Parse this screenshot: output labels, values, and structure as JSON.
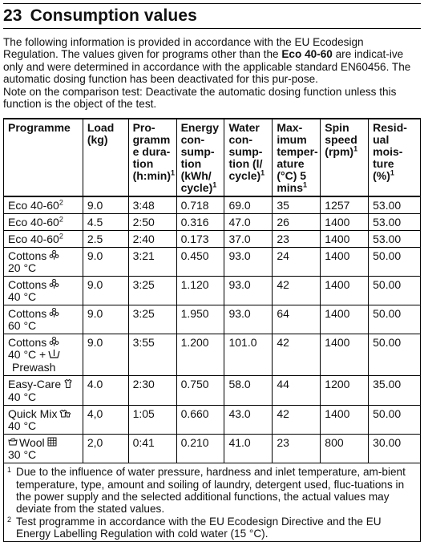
{
  "section": {
    "number": "23",
    "title": "Consumption values"
  },
  "intro": {
    "para1_a": "The following information is provided in accordance with the EU Ecodesign Regulation. The values given for programs other than the ",
    "para1_bold": "Eco 40-60",
    "para1_b": " are indicat-ive only and were determined in accordance with the applicable standard EN60456. The automatic dosing function has been deactivated for this pur-pose.",
    "para2": "Note on the comparison test: Deactivate the automatic dosing function unless this function is the object of the test."
  },
  "headers": {
    "programme": "Programme",
    "load_1": "Load",
    "load_2": "(kg)",
    "duration_1": "Pro-",
    "duration_2": "gramm",
    "duration_3": "e dura-",
    "duration_4": "tion",
    "duration_5": "(h:min)",
    "duration_sup": "1",
    "energy_1": "Energy",
    "energy_2": "con-",
    "energy_3": "sump-",
    "energy_4": "tion",
    "energy_5": "(kWh/",
    "energy_6": "cycle)",
    "energy_sup": "1",
    "water_1": "Water",
    "water_2": "con-",
    "water_3": "sump-",
    "water_4": "tion (l/",
    "water_5": "cycle)",
    "water_sup": "1",
    "temp_1": "Max-",
    "temp_2": "imum",
    "temp_3": "temper-",
    "temp_4": "ature",
    "temp_5": "(°C) 5",
    "temp_6": "mins",
    "temp_sup": "1",
    "spin_1": "Spin",
    "spin_2": "speed",
    "spin_3": "(rpm)",
    "spin_sup": "1",
    "moist_1": "Resid-",
    "moist_2": "ual",
    "moist_3": "mois-",
    "moist_4": "ture",
    "moist_5": "(%)",
    "moist_sup": "1"
  },
  "rows": [
    {
      "p1": "Eco 40-60",
      "psup": "2",
      "icon": "",
      "p2": "",
      "p3": "",
      "load": "9.0",
      "dur": "3:48",
      "energy": "0.718",
      "water": "69.0",
      "temp": "35",
      "spin": "1257",
      "moist": "53.00"
    },
    {
      "p1": "Eco 40-60",
      "psup": "2",
      "icon": "",
      "p2": "",
      "p3": "",
      "load": "4.5",
      "dur": "2:50",
      "energy": "0.316",
      "water": "47.0",
      "temp": "26",
      "spin": "1400",
      "moist": "53.00"
    },
    {
      "p1": "Eco 40-60",
      "psup": "2",
      "icon": "",
      "p2": "",
      "p3": "",
      "load": "2.5",
      "dur": "2:40",
      "energy": "0.173",
      "water": "37.0",
      "temp": "23",
      "spin": "1400",
      "moist": "53.00"
    },
    {
      "p1": "Cottons",
      "psup": "",
      "icon": "cotton-icon",
      "p2": "20 °C",
      "p3": "",
      "load": "9.0",
      "dur": "3:21",
      "energy": "0.450",
      "water": "93.0",
      "temp": "24",
      "spin": "1400",
      "moist": "50.00"
    },
    {
      "p1": "Cottons",
      "psup": "",
      "icon": "cotton-icon",
      "p2": "40 °C",
      "p3": "",
      "load": "9.0",
      "dur": "3:25",
      "energy": "1.120",
      "water": "93.0",
      "temp": "42",
      "spin": "1400",
      "moist": "50.00"
    },
    {
      "p1": "Cottons",
      "psup": "",
      "icon": "cotton-icon",
      "p2": "60 °C",
      "p3": "",
      "load": "9.0",
      "dur": "3:25",
      "energy": "1.950",
      "water": "93.0",
      "temp": "64",
      "spin": "1400",
      "moist": "50.00"
    },
    {
      "p1": "Cottons",
      "psup": "",
      "icon": "cotton-icon",
      "p2": "40 °C +",
      "p3": "Prewash",
      "load": "9.0",
      "dur": "3:55",
      "energy": "1.200",
      "water": "101.0",
      "temp": "42",
      "spin": "1400",
      "moist": "50.00"
    },
    {
      "p1": "Easy-Care",
      "psup": "",
      "icon": "easy-care-icon",
      "p2": "40 °C",
      "p3": "",
      "load": "4.0",
      "dur": "2:30",
      "energy": "0.750",
      "water": "58.0",
      "temp": "44",
      "spin": "1200",
      "moist": "35.00"
    },
    {
      "p1": "Quick Mix",
      "psup": "",
      "icon": "quick-mix-icon",
      "p2": "40 °C",
      "p3": "",
      "load": "4,0",
      "dur": "1:05",
      "energy": "0.660",
      "water": "43.0",
      "temp": "42",
      "spin": "1400",
      "moist": "50.00"
    },
    {
      "p1": "Wool",
      "psup": "",
      "icon": "wool-icon",
      "p2": "30 °C",
      "p3": "",
      "load": "2,0",
      "dur": "0:41",
      "energy": "0.210",
      "water": "41.0",
      "temp": "23",
      "spin": "800",
      "moist": "30.00"
    }
  ],
  "footnotes": [
    {
      "mark": "1",
      "text": "Due to the influence of water pressure, hardness and inlet temperature, am-bient temperature, type, amount and soiling of laundry, detergent used, fluc-tuations in the power supply and the selected additional functions, the actual values may deviate from the stated values."
    },
    {
      "mark": "2",
      "text": "Test programme in accordance with the EU Ecodesign Directive and the EU Energy Labelling Regulation with cold water (15 °C)."
    }
  ]
}
